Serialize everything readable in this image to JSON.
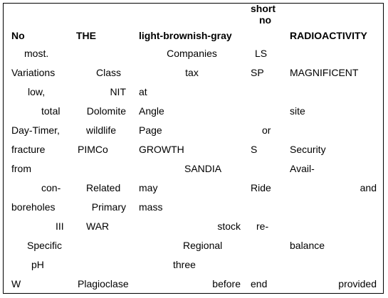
{
  "headers": [
    "No",
    "THE",
    "light-brownish-gray",
    [
      "short",
      "no"
    ],
    "RADIOACTIVITY"
  ],
  "rows": [
    [
      "most.",
      "",
      "Companies",
      "LS",
      ""
    ],
    [
      "Variations",
      "Class",
      "tax",
      "SP",
      "MAGNIFICENT"
    ],
    [
      "low,",
      "NIT",
      "at",
      "",
      ""
    ],
    [
      "total",
      "Dolomite",
      "Angle",
      "",
      "site"
    ],
    [
      "Day-Timer,",
      "wildlife",
      "Page",
      "or",
      ""
    ],
    [
      "fracture",
      "PIMCo",
      "GROWTH",
      "S",
      "Security"
    ],
    [
      "from",
      "",
      "SANDIA",
      "",
      "Avail-"
    ],
    [
      "con-",
      "Related",
      "may",
      "Ride",
      "and"
    ],
    [
      "boreholes",
      "Primary",
      "mass",
      "",
      ""
    ],
    [
      "III",
      "WAR",
      "stock",
      "re-",
      ""
    ],
    [
      "Specific",
      "",
      "Regional",
      "",
      "balance"
    ],
    [
      "pH",
      "",
      "three",
      "",
      ""
    ],
    [
      "W",
      "Plagioclase",
      "before",
      "end",
      "provided"
    ]
  ]
}
